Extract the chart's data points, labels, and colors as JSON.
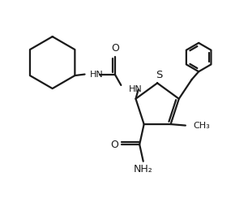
{
  "bg_color": "#ffffff",
  "line_color": "#1a1a1a",
  "line_width": 1.6,
  "fig_width": 3.06,
  "fig_height": 2.76,
  "dpi": 100,
  "xlim": [
    0,
    10
  ],
  "ylim": [
    0,
    9
  ]
}
